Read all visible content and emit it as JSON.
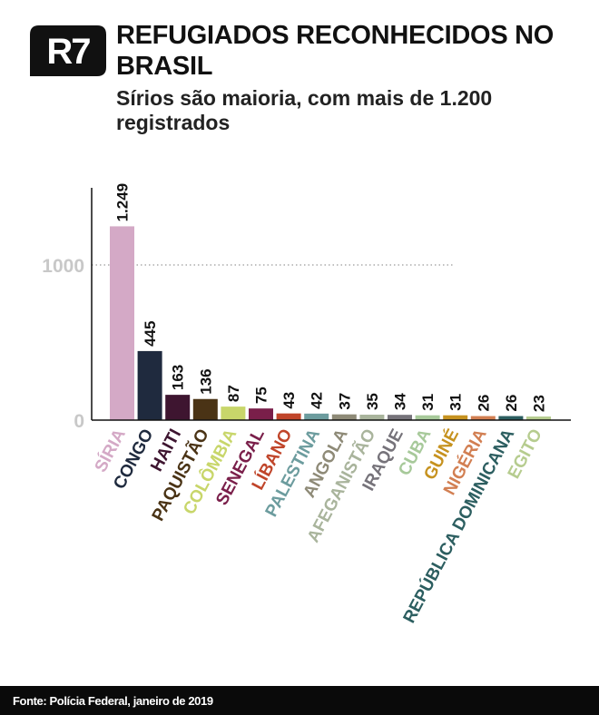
{
  "logo": {
    "text": "R7"
  },
  "title": "REFUGIADOS RECONHECIDOS NO BRASIL",
  "subtitle": "Sírios são maioria, com mais de 1.200 registrados",
  "footer": {
    "source": "Fonte: Polícia Federal, janeiro de 2019"
  },
  "colors": {
    "logo_bg": "#111111",
    "axis": "#111111",
    "tick_label": "#c8c8c8",
    "gridline": "#9a9a9a"
  },
  "chart_data": {
    "type": "bar",
    "title": "REFUGIADOS RECONHECIDOS NO BRASIL",
    "xlabel": "",
    "ylabel": "",
    "ylim": [
      0,
      1300
    ],
    "yticks": [
      0,
      1000
    ],
    "ytick_labels": [
      "0",
      "1000"
    ],
    "grid": "dotted line at 1000",
    "categories": [
      "SÍRIA",
      "CONGO",
      "HAITI",
      "PAQUISTÃO",
      "COLÔMBIA",
      "SENEGAL",
      "LÍBANO",
      "PALESTINA",
      "ANGOLA",
      "AFEGANISTÃO",
      "IRAQUE",
      "CUBA",
      "GUINÉ",
      "NIGÉRIA",
      "REPÚBLICA DOMINICANA",
      "EGITO"
    ],
    "values": [
      1249,
      445,
      163,
      136,
      87,
      75,
      43,
      42,
      37,
      35,
      34,
      31,
      31,
      26,
      26,
      23
    ],
    "value_labels": [
      "1.249",
      "445",
      "163",
      "136",
      "87",
      "75",
      "43",
      "42",
      "37",
      "35",
      "34",
      "31",
      "31",
      "26",
      "26",
      "23"
    ],
    "bar_colors": [
      "#d4a9c6",
      "#1f2a3e",
      "#3e1530",
      "#4a3315",
      "#c8d66a",
      "#7a1f4a",
      "#c0452a",
      "#6c9c9e",
      "#8e8a77",
      "#a9b49c",
      "#76737a",
      "#a7c99a",
      "#c6921f",
      "#d27f52",
      "#2c5e60",
      "#b6cc8f"
    ],
    "label_colors": [
      "#d4a9c6",
      "#1f2a3e",
      "#3e1530",
      "#4a3315",
      "#c8d66a",
      "#7a1f4a",
      "#c0452a",
      "#6c9c9e",
      "#8e8a77",
      "#a9b49c",
      "#76737a",
      "#a7c99a",
      "#c6921f",
      "#d27f52",
      "#2c5e60",
      "#b6cc8f"
    ]
  }
}
